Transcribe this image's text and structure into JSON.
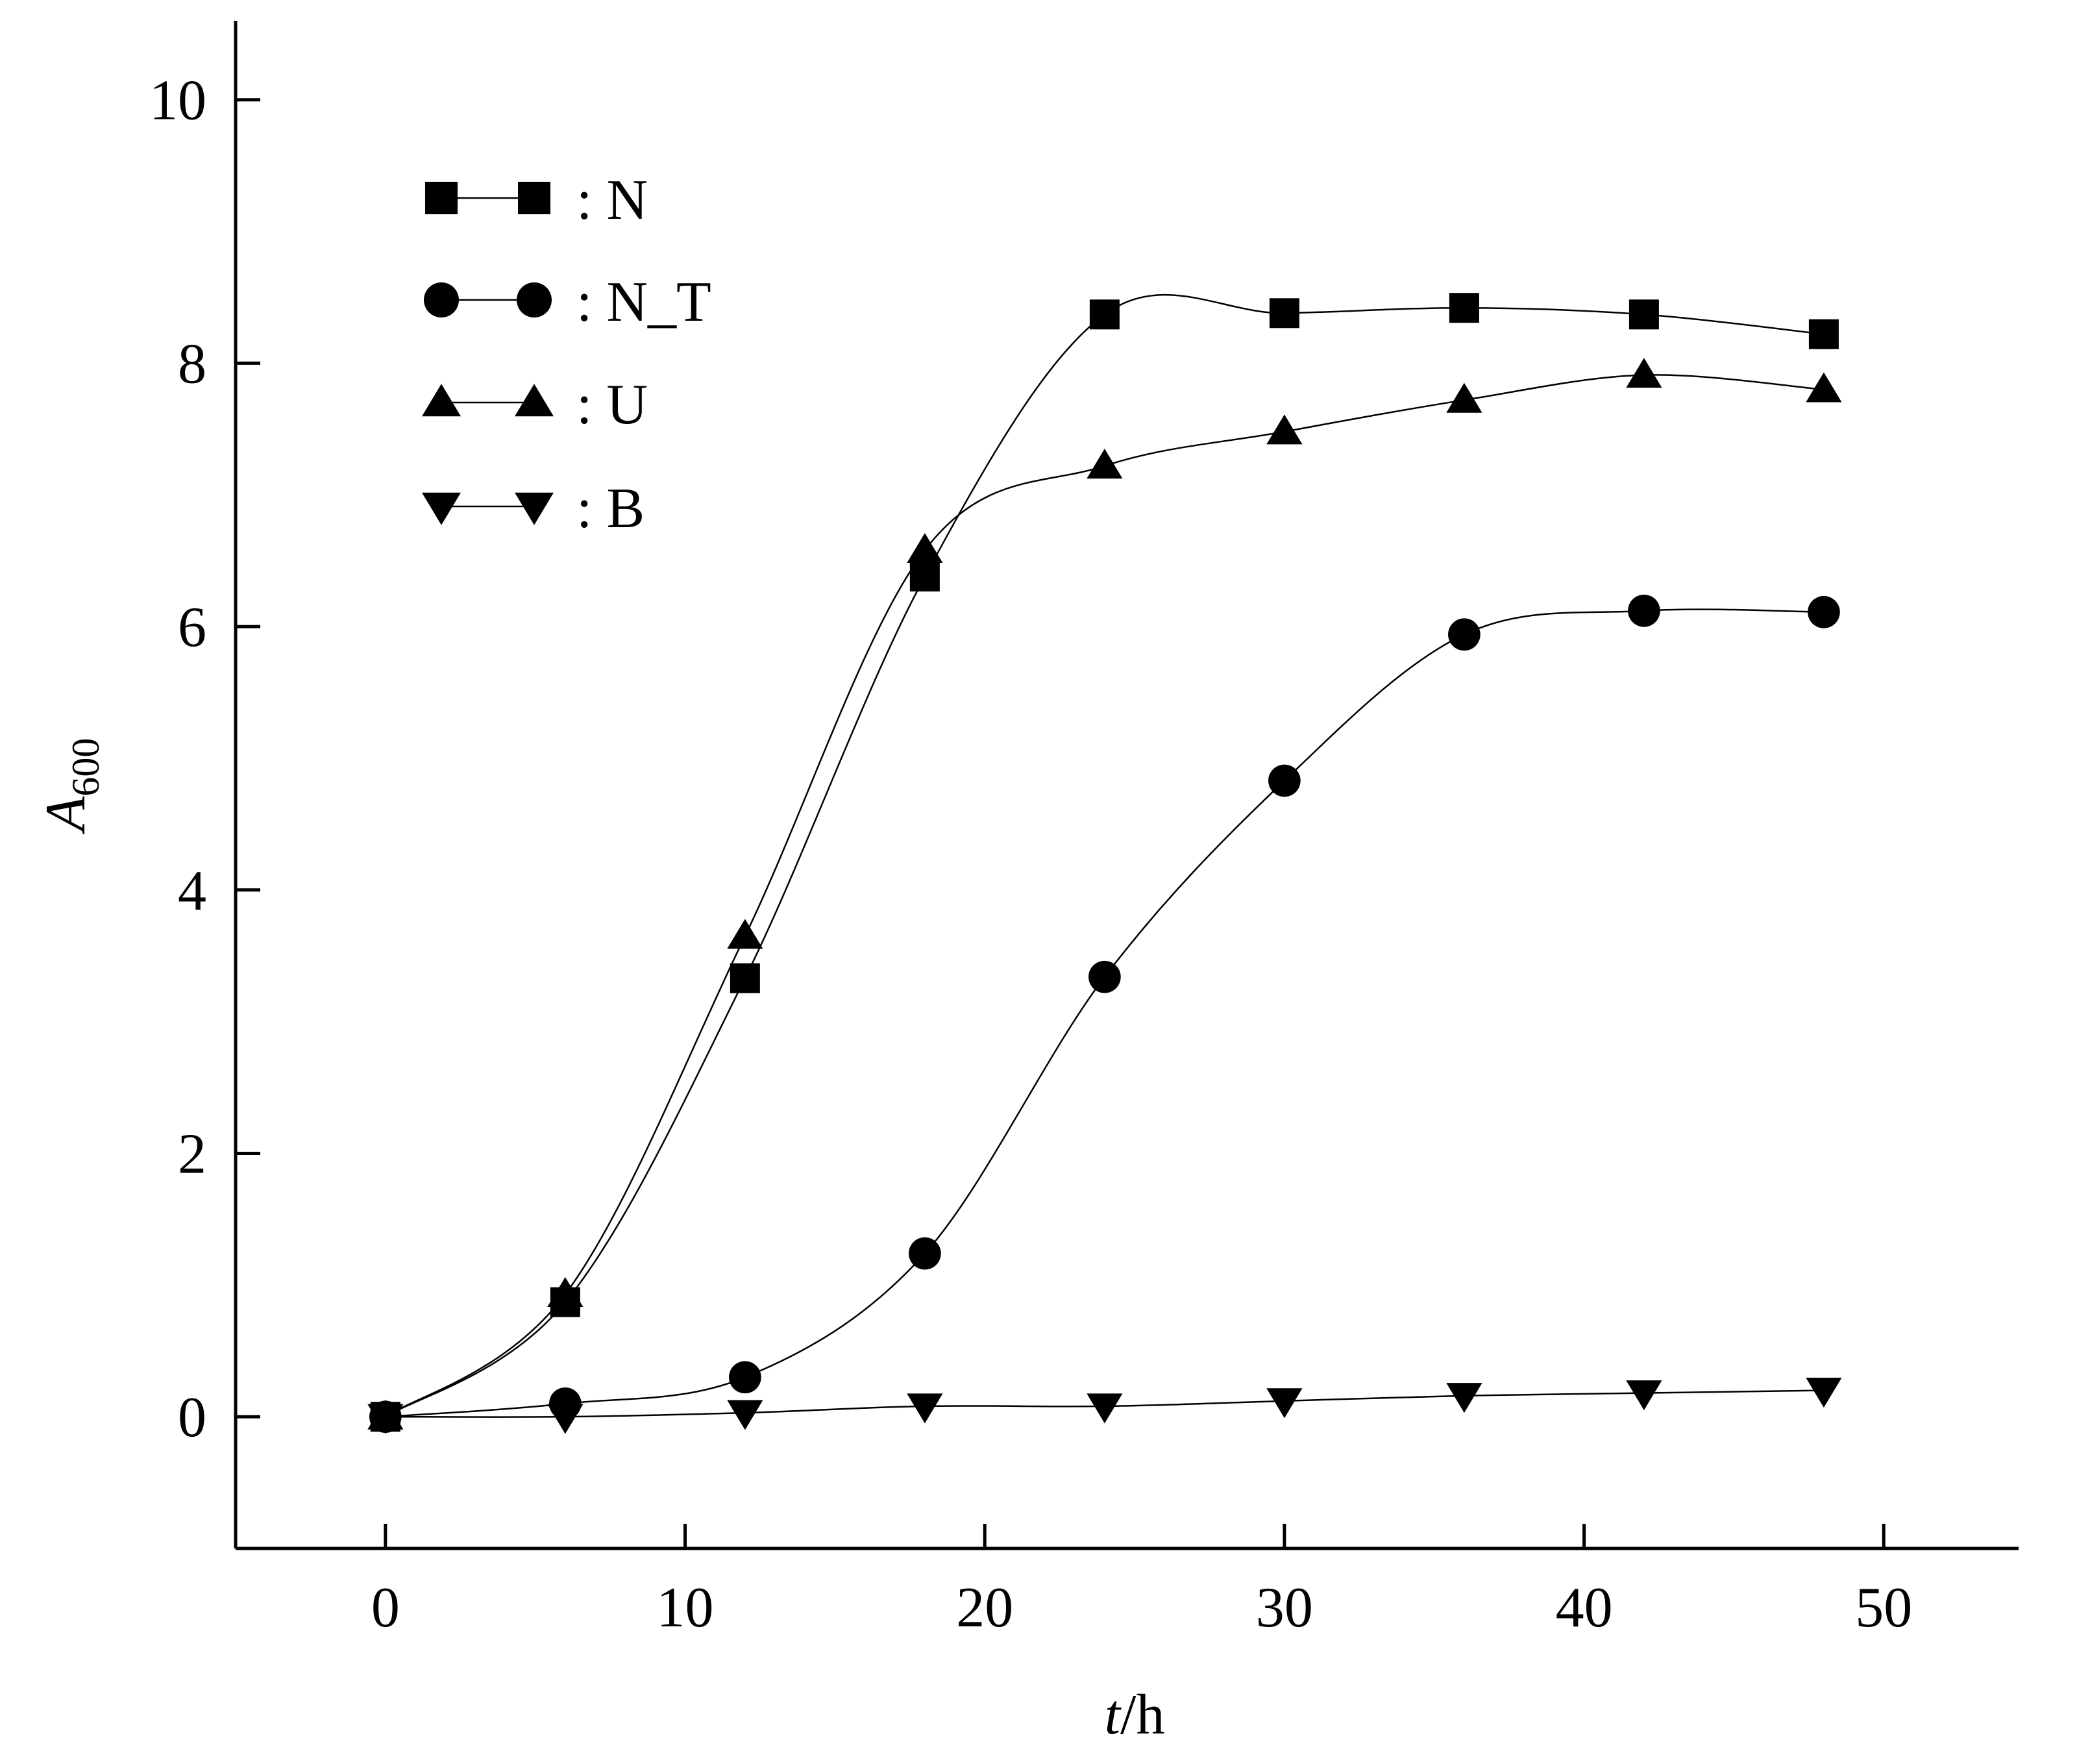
{
  "chart_data": {
    "type": "line",
    "xlabel": {
      "italic": "t",
      "rest": "/h"
    },
    "ylabel": {
      "italic": "A",
      "subscript": "600"
    },
    "xlim": [
      -5,
      54.5
    ],
    "ylim": [
      -1,
      10.6
    ],
    "xticks": [
      0,
      10,
      20,
      30,
      40,
      50
    ],
    "yticks": [
      0,
      2,
      4,
      6,
      8,
      10
    ],
    "xtick_labels": [
      "0",
      "10",
      "20",
      "30",
      "40",
      "50"
    ],
    "ytick_labels": [
      "0",
      "2",
      "4",
      "6",
      "8",
      "10"
    ],
    "grid": false,
    "legend_position": "top-left",
    "x": [
      0,
      6,
      12,
      18,
      24,
      30,
      36,
      42,
      48
    ],
    "series": [
      {
        "name": ": N",
        "marker": "square",
        "values": [
          0.0,
          0.87,
          3.33,
          6.38,
          8.37,
          8.38,
          8.42,
          8.37,
          8.22
        ]
      },
      {
        "name": ": N_T",
        "marker": "circle",
        "values": [
          0.0,
          0.1,
          0.3,
          1.24,
          3.34,
          4.83,
          5.94,
          6.12,
          6.11
        ]
      },
      {
        "name": ": U",
        "marker": "triangle-up",
        "values": [
          0.0,
          0.93,
          3.65,
          6.58,
          7.22,
          7.48,
          7.72,
          7.91,
          7.8
        ]
      },
      {
        "name": ": B",
        "marker": "triangle-down",
        "values": [
          0.0,
          0.0,
          0.03,
          0.08,
          0.08,
          0.12,
          0.16,
          0.18,
          0.2
        ]
      }
    ]
  }
}
